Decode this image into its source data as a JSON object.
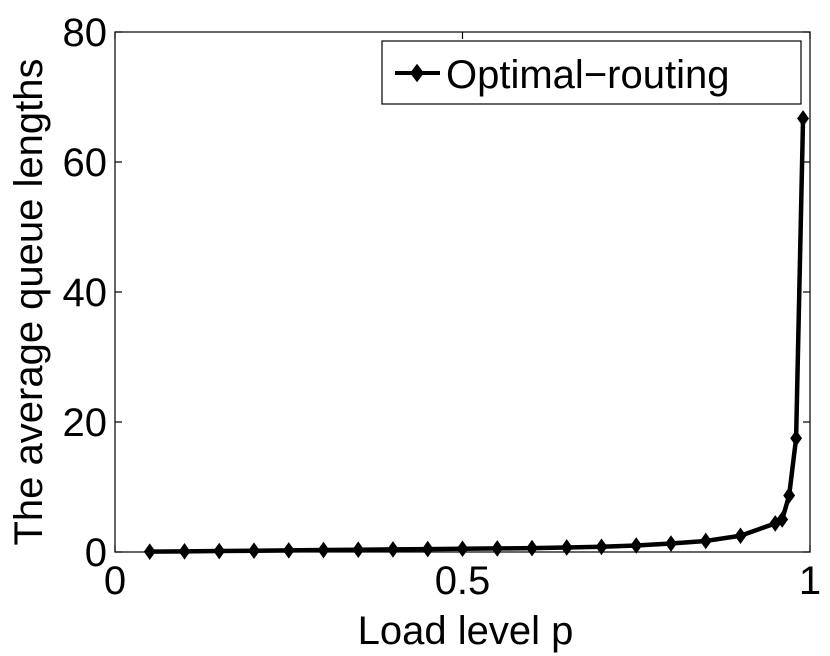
{
  "chart_data": {
    "type": "line",
    "title": "",
    "xlabel": "Load level p",
    "ylabel": "The average queue lengths",
    "xlim": [
      0,
      1
    ],
    "ylim": [
      0,
      80
    ],
    "xticks": [
      0,
      0.5,
      1
    ],
    "xtick_labels": [
      "0",
      "0.5",
      "1"
    ],
    "yticks": [
      0,
      20,
      40,
      60,
      80
    ],
    "ytick_labels": [
      "0",
      "20",
      "40",
      "60",
      "80"
    ],
    "grid": false,
    "legend_position": "top-right",
    "series": [
      {
        "name": "Optimal−routing",
        "color": "#000000",
        "marker": "diamond",
        "x": [
          0.05,
          0.1,
          0.15,
          0.2,
          0.25,
          0.3,
          0.35,
          0.4,
          0.45,
          0.5,
          0.55,
          0.6,
          0.65,
          0.7,
          0.75,
          0.8,
          0.85,
          0.9,
          0.95,
          0.96,
          0.97,
          0.98,
          0.99
        ],
        "y": [
          0.05,
          0.1,
          0.15,
          0.2,
          0.25,
          0.3,
          0.35,
          0.4,
          0.45,
          0.5,
          0.55,
          0.6,
          0.7,
          0.8,
          1.0,
          1.3,
          1.7,
          2.5,
          4.4,
          5.0,
          8.7,
          17.5,
          66.7
        ]
      }
    ]
  }
}
